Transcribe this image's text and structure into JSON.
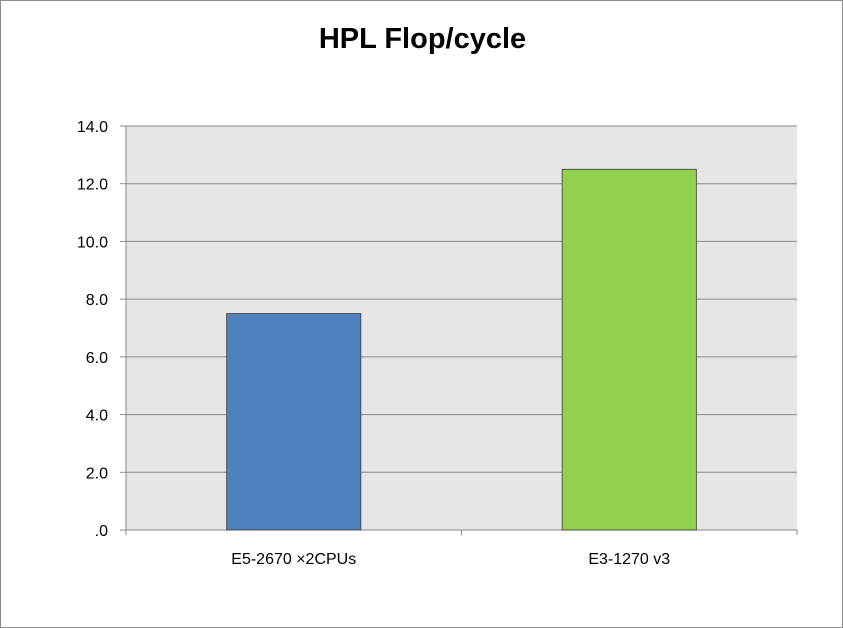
{
  "chart_data": {
    "type": "bar",
    "title": "HPL Flop/cycle",
    "xlabel": "",
    "ylabel": "",
    "categories": [
      "E5-2670 ×2CPUs",
      "E3-1270 v3"
    ],
    "values": [
      7.5,
      12.5
    ],
    "bar_colors": [
      "#4f81bd",
      "#92d050"
    ],
    "ylim": [
      0,
      14
    ],
    "yticks": [
      0,
      2,
      4,
      6,
      8,
      10,
      12,
      14
    ],
    "ytick_labels": [
      ".0",
      "2.0",
      "4.0",
      "6.0",
      "8.0",
      "10.0",
      "12.0",
      "14.0"
    ],
    "grid": true,
    "legend": "none",
    "plot_background": "#e6e6e6"
  }
}
